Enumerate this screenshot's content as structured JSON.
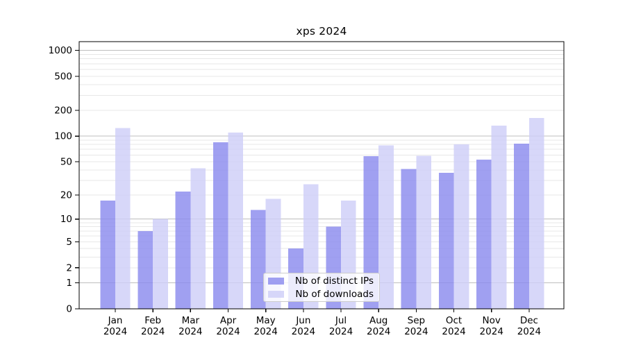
{
  "chart_data": {
    "type": "bar",
    "title": "xps 2024",
    "categories": [
      "Jan 2024",
      "Feb 2024",
      "Mar 2024",
      "Apr 2024",
      "May 2024",
      "Jun 2024",
      "Jul 2024",
      "Aug 2024",
      "Sep 2024",
      "Oct 2024",
      "Nov 2024",
      "Dec 2024"
    ],
    "series": [
      {
        "name": "Nb of distinct IPs",
        "color": "#8b8bee",
        "values": [
          17,
          7,
          22,
          85,
          13,
          4,
          8,
          58,
          41,
          37,
          53,
          82
        ]
      },
      {
        "name": "Nb of downloads",
        "color": "#cecef8",
        "values": [
          124,
          10,
          42,
          110,
          18,
          27,
          17,
          78,
          59,
          80,
          133,
          163
        ]
      }
    ],
    "xlabel": "",
    "ylabel": "",
    "yscale": "log1p",
    "ytick_labels": [
      "0",
      "1",
      "2",
      "5",
      "10",
      "20",
      "50",
      "100",
      "200",
      "500",
      "1000"
    ],
    "yticks": [
      0,
      1,
      2,
      5,
      10,
      20,
      50,
      100,
      200,
      500,
      1000
    ],
    "ylim": [
      0,
      1250
    ],
    "grid": true,
    "legend_position": "lower center"
  },
  "style": {
    "bar_opacity": "0.82",
    "major_grid_color": "#bdbdbd",
    "minor_grid_color": "#e7e7e7",
    "frame_color": "#000000",
    "text_color": "#000000",
    "background": "#ffffff"
  }
}
